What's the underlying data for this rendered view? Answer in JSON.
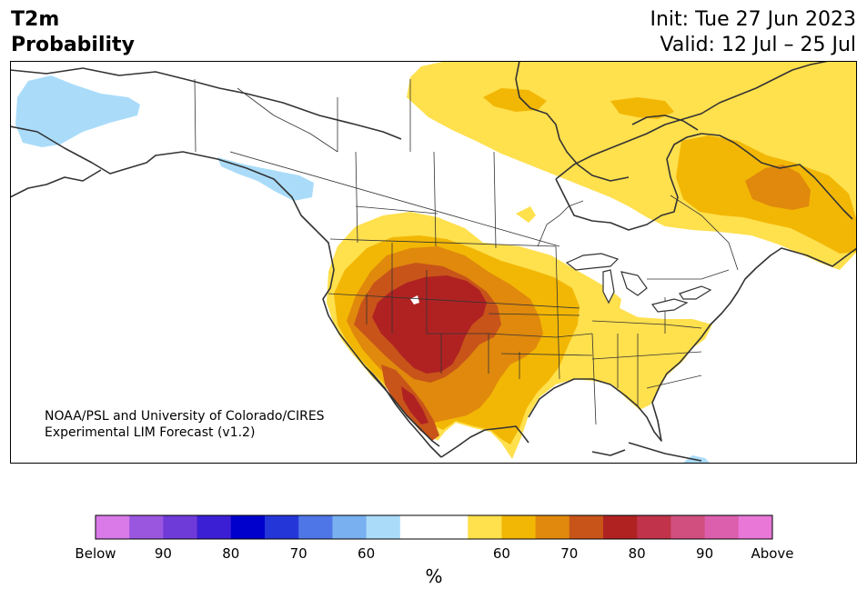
{
  "header": {
    "title_line1": "T2m",
    "title_line2": "Probability",
    "init": "Init: Tue 27 Jun 2023",
    "valid": "Valid: 12 Jul – 25 Jul"
  },
  "credit": {
    "line1": "NOAA/PSL and University of Colorado/CIRES",
    "line2": "Experimental LIM Forecast (v1.2)"
  },
  "colorbar": {
    "unit": "%",
    "colors": [
      "#d97ae8",
      "#9b56e0",
      "#6e3bd9",
      "#3b1fd4",
      "#0000cc",
      "#2536d9",
      "#4f76e6",
      "#78b0f0",
      "#aadcfa",
      "#ffffff",
      "#ffffff",
      "#ffe04d",
      "#f2b705",
      "#e0890c",
      "#c8541a",
      "#b02222",
      "#c0334a",
      "#d14f7e",
      "#dc5fad",
      "#e877d8"
    ],
    "labels": [
      "Below",
      "90",
      "80",
      "70",
      "60",
      "60",
      "70",
      "80",
      "90",
      "Above"
    ]
  },
  "map_colors": {
    "light_blue": "#aadcfa",
    "yellow": "#ffe04d",
    "gold": "#f2b705",
    "orange": "#e0890c",
    "dark_orange": "#c8541a",
    "red": "#b02222",
    "land_outline": "#333333"
  }
}
